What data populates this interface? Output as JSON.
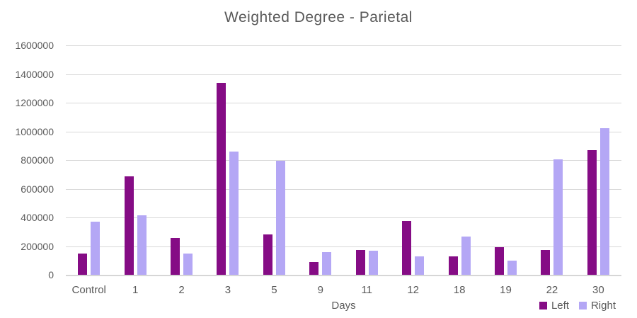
{
  "chart_data": {
    "type": "bar",
    "title": "Weighted Degree - Parietal",
    "xlabel": "Days",
    "ylabel": "",
    "categories": [
      "Control",
      "1",
      "2",
      "3",
      "5",
      "9",
      "11",
      "12",
      "18",
      "19",
      "22",
      "30"
    ],
    "series": [
      {
        "name": "Left",
        "color": "#850C85",
        "values": [
          150000,
          685000,
          255000,
          1340000,
          280000,
          90000,
          175000,
          375000,
          130000,
          195000,
          175000,
          870000
        ]
      },
      {
        "name": "Right",
        "color": "#B4A7F5",
        "values": [
          370000,
          415000,
          150000,
          860000,
          795000,
          160000,
          170000,
          130000,
          265000,
          100000,
          805000,
          1020000
        ]
      }
    ],
    "ylim": [
      0,
      1600000
    ],
    "ytick_step": 200000,
    "grid": true,
    "legend_position": "bottom-right",
    "colors": {
      "text": "#595959",
      "gridline": "#D9D9D9",
      "axis_line": "#D6D6D6",
      "background": "#FFFFFF"
    }
  }
}
